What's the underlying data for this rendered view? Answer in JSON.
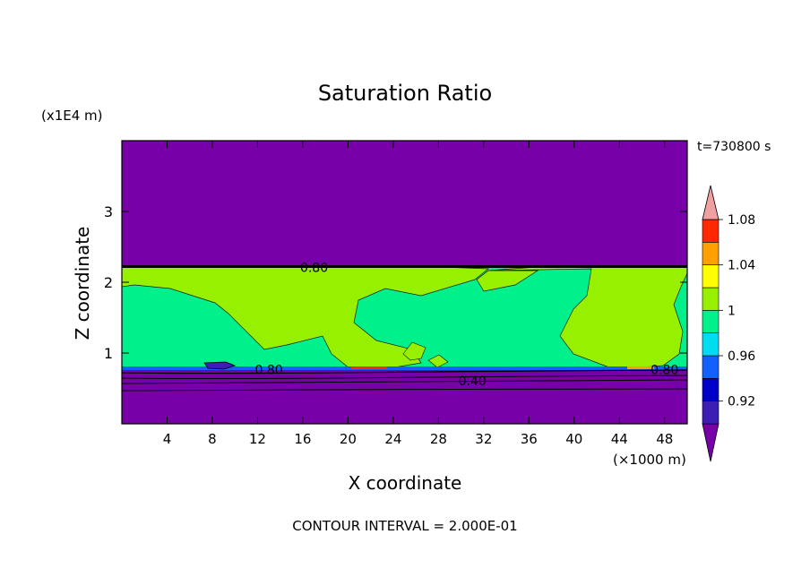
{
  "chart_data": {
    "type": "contour",
    "title": "Saturation Ratio",
    "y_unit_label": "(x1E4 m)",
    "time_label": "t=730800 s",
    "xlabel": "X coordinate",
    "x_unit_label": "(×1000 m)",
    "ylabel": "Z coordinate",
    "footer": "CONTOUR INTERVAL = 2.000E-01",
    "xlim": [
      0,
      50
    ],
    "ylim": [
      0,
      4
    ],
    "x_ticks": [
      "4",
      "8",
      "12",
      "16",
      "20",
      "24",
      "28",
      "32",
      "36",
      "40",
      "44",
      "48"
    ],
    "y_ticks": [
      "1",
      "2",
      "3"
    ],
    "contour_labels": [
      {
        "text": "0.80",
        "x": 17,
        "z": 2.22
      },
      {
        "text": "0.80",
        "x": 13,
        "z": 0.78
      },
      {
        "text": "0.40",
        "x": 31,
        "z": 0.62
      },
      {
        "text": "0.80",
        "x": 48,
        "z": 0.78
      }
    ],
    "colorbar": {
      "levels": [
        "",
        "0.92",
        "",
        "0.96",
        "",
        "1",
        "",
        "1.04",
        "",
        "1.08",
        ""
      ],
      "colors": [
        "#7800a8",
        "#3c1eb4",
        "#0000c8",
        "#1460ff",
        "#00dcf0",
        "#00f08c",
        "#96f000",
        "#ffff00",
        "#ffa000",
        "#ff2800",
        "#f0a0a0"
      ]
    },
    "regions": {
      "upper_band": {
        "z_range": [
          2.2,
          4.0
        ],
        "value": "< 0.90"
      },
      "cloud_layer": {
        "z_range": [
          0.76,
          2.22
        ],
        "value": "0.98 – 1.02"
      },
      "lower_band": {
        "z_range": [
          0.0,
          0.76
        ],
        "value": "< 0.90"
      }
    }
  }
}
